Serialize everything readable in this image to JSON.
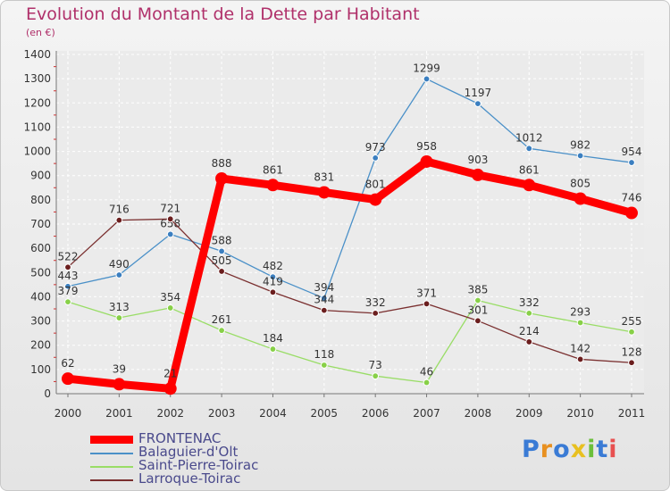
{
  "chart_data": {
    "type": "line",
    "title": "Evolution du Montant de la Dette par Habitant",
    "subtitle": "(en €)",
    "x": [
      "2000",
      "2001",
      "2002",
      "2003",
      "2004",
      "2005",
      "2006",
      "2007",
      "2008",
      "2009",
      "2010",
      "2011"
    ],
    "ylim": [
      0,
      1400
    ],
    "yticks": [
      0,
      100,
      200,
      300,
      400,
      500,
      600,
      700,
      800,
      900,
      1000,
      1100,
      1200,
      1300,
      1400
    ],
    "grid": true,
    "legend_position": "bottom-left",
    "series": [
      {
        "name": "FRONTENAC",
        "color": "#ff0000",
        "emphasis": true,
        "values": [
          62,
          39,
          21,
          888,
          861,
          831,
          801,
          958,
          903,
          861,
          805,
          746
        ]
      },
      {
        "name": "Balaguier-d'Olt",
        "color": "#4a90c8",
        "marker": "#3b7fc0",
        "values": [
          443,
          490,
          658,
          588,
          482,
          394,
          973,
          1299,
          1197,
          1012,
          982,
          954
        ]
      },
      {
        "name": "Saint-Pierre-Toirac",
        "color": "#99dd66",
        "marker": "#88d048",
        "values": [
          379,
          313,
          354,
          261,
          184,
          118,
          73,
          46,
          385,
          332,
          293,
          255
        ]
      },
      {
        "name": "Larroque-Toirac",
        "color": "#7a2f2f",
        "marker": "#6b1e1e",
        "values": [
          522,
          716,
          721,
          505,
          419,
          344,
          332,
          371,
          301,
          214,
          142,
          128
        ]
      }
    ]
  },
  "logo": {
    "letters": [
      "P",
      "r",
      "o",
      "x",
      "i",
      "t",
      "i"
    ],
    "colors": [
      "#3a7bd5",
      "#e89020",
      "#3a7bd5",
      "#e8c020",
      "#6bbf3a",
      "#3a7bd5",
      "#e85050"
    ]
  }
}
